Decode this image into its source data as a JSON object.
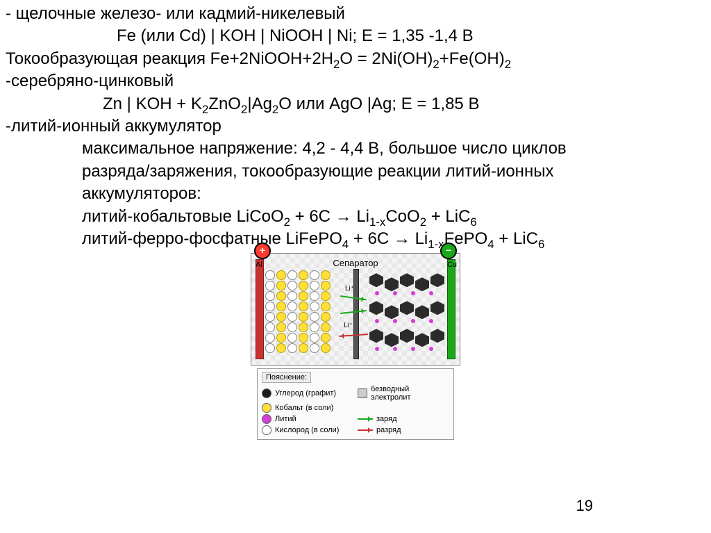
{
  "lines": {
    "l1": "- щелочные железо- или кадмий-никелевый",
    "l2": "Fe (или Cd) | KOH | NiOOH | Ni; E = 1,35 -1,4 В",
    "l3_pre": "Токообразующая реакция Fe+2NiOOH+2H",
    "l3_h2o": "O = 2Ni(OH)",
    "l3_feoh": "+Fe(OH)",
    "l4": "-серебряно-цинковый",
    "l5_a": "Zn | KOH + K",
    "l5_b": "ZnO",
    "l5_c": "|Ag",
    "l5_d": "O или AgO |Ag; E = 1,85 В",
    "l6": "-литий-ионный аккумулятор",
    "l7": "максимальное напряжение: 4,2 - 4,4 В, большое число циклов",
    "l8": "разряда/заряжения, токообразующие реакции литий-ионных",
    "l9": "аккумуляторов:",
    "l10_a": "литий-кобальтовые LiCoO",
    "l10_b": " + 6C → Li",
    "l10_c": "CoO",
    "l10_d": " + LiC",
    "l11_a": "литий-ферро-фосфатные LiFePO",
    "l11_b": " + 6C → Li",
    "l11_c": "FePO",
    "l11_d": " + LiC"
  },
  "subs": {
    "two": "2",
    "oneminusx": "1-x",
    "four": "4",
    "six": "6"
  },
  "diagram": {
    "separator_label": "Сепаратор",
    "al_label": "Al",
    "cu_label": "Cu",
    "li_plus": "Li⁺",
    "colors": {
      "plus_bg": "#ff3b30",
      "minus_bg": "#18a818",
      "electrode_left": "#c83232",
      "electrode_right": "#18a818",
      "separator": "#555555",
      "graphite": "#2b2b2b",
      "lithium": "#d63cd6",
      "cobalt": "#ffe03a",
      "oxygen": "#ffffff"
    }
  },
  "legend": {
    "title": "Пояснение:",
    "items": {
      "carbon": "Углерод (графит)",
      "electrolyte": "безводный электролит",
      "cobalt": "Кобальт (в соли)",
      "lithium": "Литий",
      "charge": "заряд",
      "oxygen": "Кислород (в соли)",
      "discharge": "разряд"
    }
  },
  "page_number": "19"
}
